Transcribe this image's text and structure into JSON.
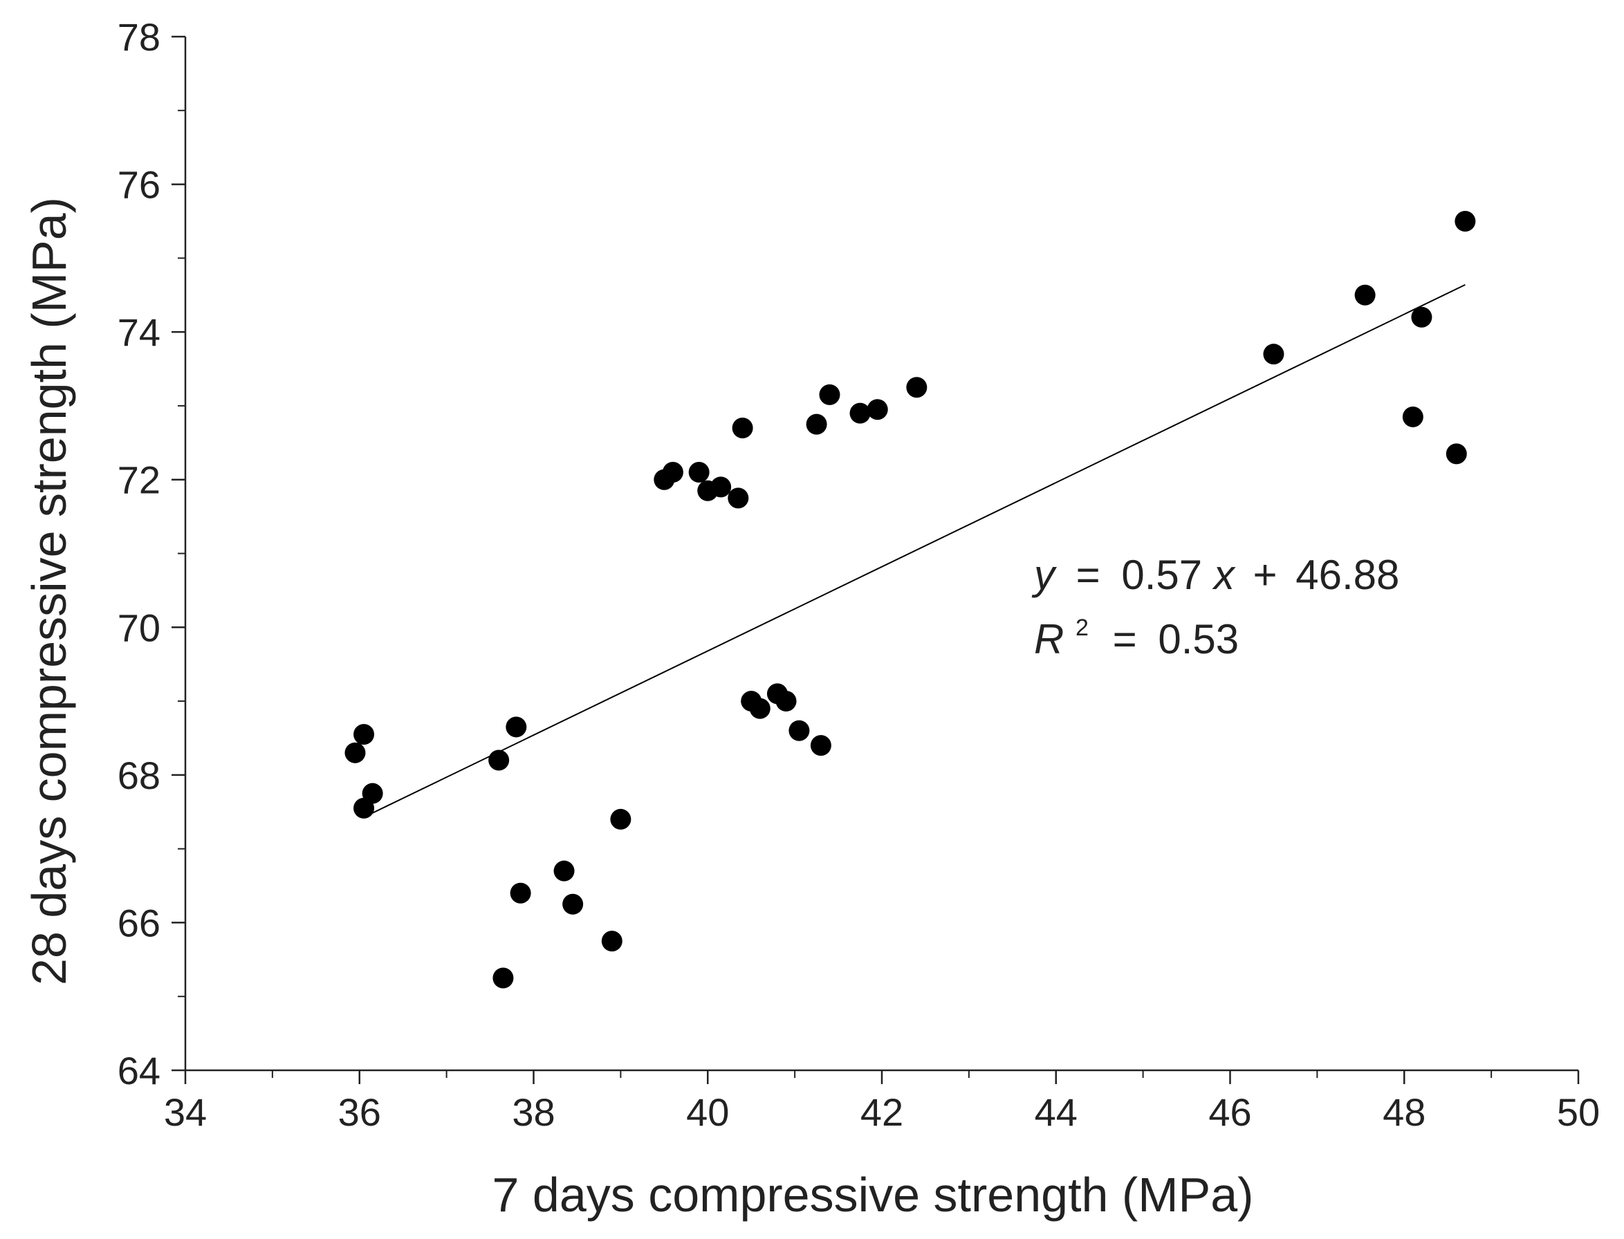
{
  "chart_data": {
    "type": "scatter",
    "xlabel": "7 days compressive strength (MPa)",
    "ylabel": "28 days compressive strength (MPa)",
    "xlim": [
      34,
      50
    ],
    "ylim": [
      64,
      78
    ],
    "x_ticks": [
      34,
      36,
      38,
      40,
      42,
      44,
      46,
      48,
      50
    ],
    "y_ticks": [
      64,
      66,
      68,
      70,
      72,
      74,
      76,
      78
    ],
    "x_tick_labels": [
      "34",
      "36",
      "38",
      "40",
      "42",
      "44",
      "46",
      "48",
      "50"
    ],
    "y_tick_labels": [
      "64",
      "66",
      "68",
      "70",
      "72",
      "74",
      "76",
      "78"
    ],
    "grid": false,
    "series": [
      {
        "name": "data",
        "color": "#000000",
        "points": [
          [
            35.95,
            68.3
          ],
          [
            36.05,
            68.55
          ],
          [
            36.05,
            67.55
          ],
          [
            36.15,
            67.75
          ],
          [
            37.6,
            68.2
          ],
          [
            37.8,
            68.65
          ],
          [
            37.65,
            65.25
          ],
          [
            37.85,
            66.4
          ],
          [
            38.35,
            66.7
          ],
          [
            38.45,
            66.25
          ],
          [
            38.9,
            65.75
          ],
          [
            39.0,
            67.4
          ],
          [
            39.5,
            72.0
          ],
          [
            39.6,
            72.1
          ],
          [
            39.9,
            72.1
          ],
          [
            40.0,
            71.85
          ],
          [
            40.15,
            71.9
          ],
          [
            40.35,
            71.75
          ],
          [
            40.4,
            72.7
          ],
          [
            40.5,
            69.0
          ],
          [
            40.6,
            68.9
          ],
          [
            40.8,
            69.1
          ],
          [
            40.9,
            69.0
          ],
          [
            41.05,
            68.6
          ],
          [
            41.25,
            72.75
          ],
          [
            41.3,
            68.4
          ],
          [
            41.4,
            73.15
          ],
          [
            41.75,
            72.9
          ],
          [
            41.95,
            72.95
          ],
          [
            42.4,
            73.25
          ],
          [
            46.5,
            73.7
          ],
          [
            47.55,
            74.5
          ],
          [
            48.1,
            72.85
          ],
          [
            48.2,
            74.2
          ],
          [
            48.6,
            72.35
          ],
          [
            48.7,
            75.5
          ]
        ]
      }
    ],
    "fit": {
      "type": "linear",
      "slope": 0.57,
      "intercept": 46.88,
      "x_range": [
        36.15,
        48.7
      ],
      "color": "#000000"
    },
    "annotations": {
      "equation": {
        "y": "y",
        "eq1": "=",
        "slope": "0.57",
        "x": "x",
        "plus": "+",
        "intercept": "46.88"
      },
      "r2": {
        "r": "R",
        "sup": "2",
        "eq": "=",
        "value": "0.53"
      }
    }
  }
}
